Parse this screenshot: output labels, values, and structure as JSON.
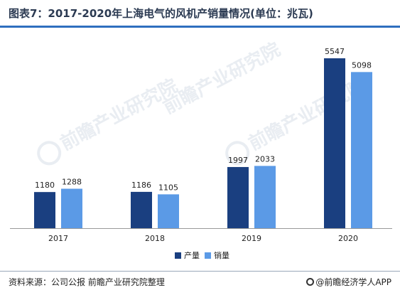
{
  "title": "图表7：2017-2020年上海电气的风机产销量情况(单位：兆瓦)",
  "footer": {
    "source": "资料来源：公司公报 前瞻产业研究院整理",
    "brand": "@前瞻经济学人APP"
  },
  "watermark": {
    "text": "前瞻产业研究院"
  },
  "colors": {
    "production": "#1a3f80",
    "sales": "#5b9ae6",
    "axis": "#999999",
    "title_rule": "#2e6fbf"
  },
  "chart_data": {
    "type": "bar",
    "categories": [
      "2017",
      "2018",
      "2019",
      "2020"
    ],
    "series": [
      {
        "name": "产量",
        "values": [
          1180,
          1186,
          1997,
          5547
        ],
        "color": "#1a3f80"
      },
      {
        "name": "销量",
        "values": [
          1288,
          1105,
          2033,
          5098
        ],
        "color": "#5b9ae6"
      }
    ],
    "title": "图表7：2017-2020年上海电气的风机产销量情况(单位：兆瓦)",
    "xlabel": "",
    "ylabel": "",
    "ylim": [
      0,
      5547
    ],
    "grid": false,
    "legend": "bottom-center",
    "data_labels": true
  }
}
